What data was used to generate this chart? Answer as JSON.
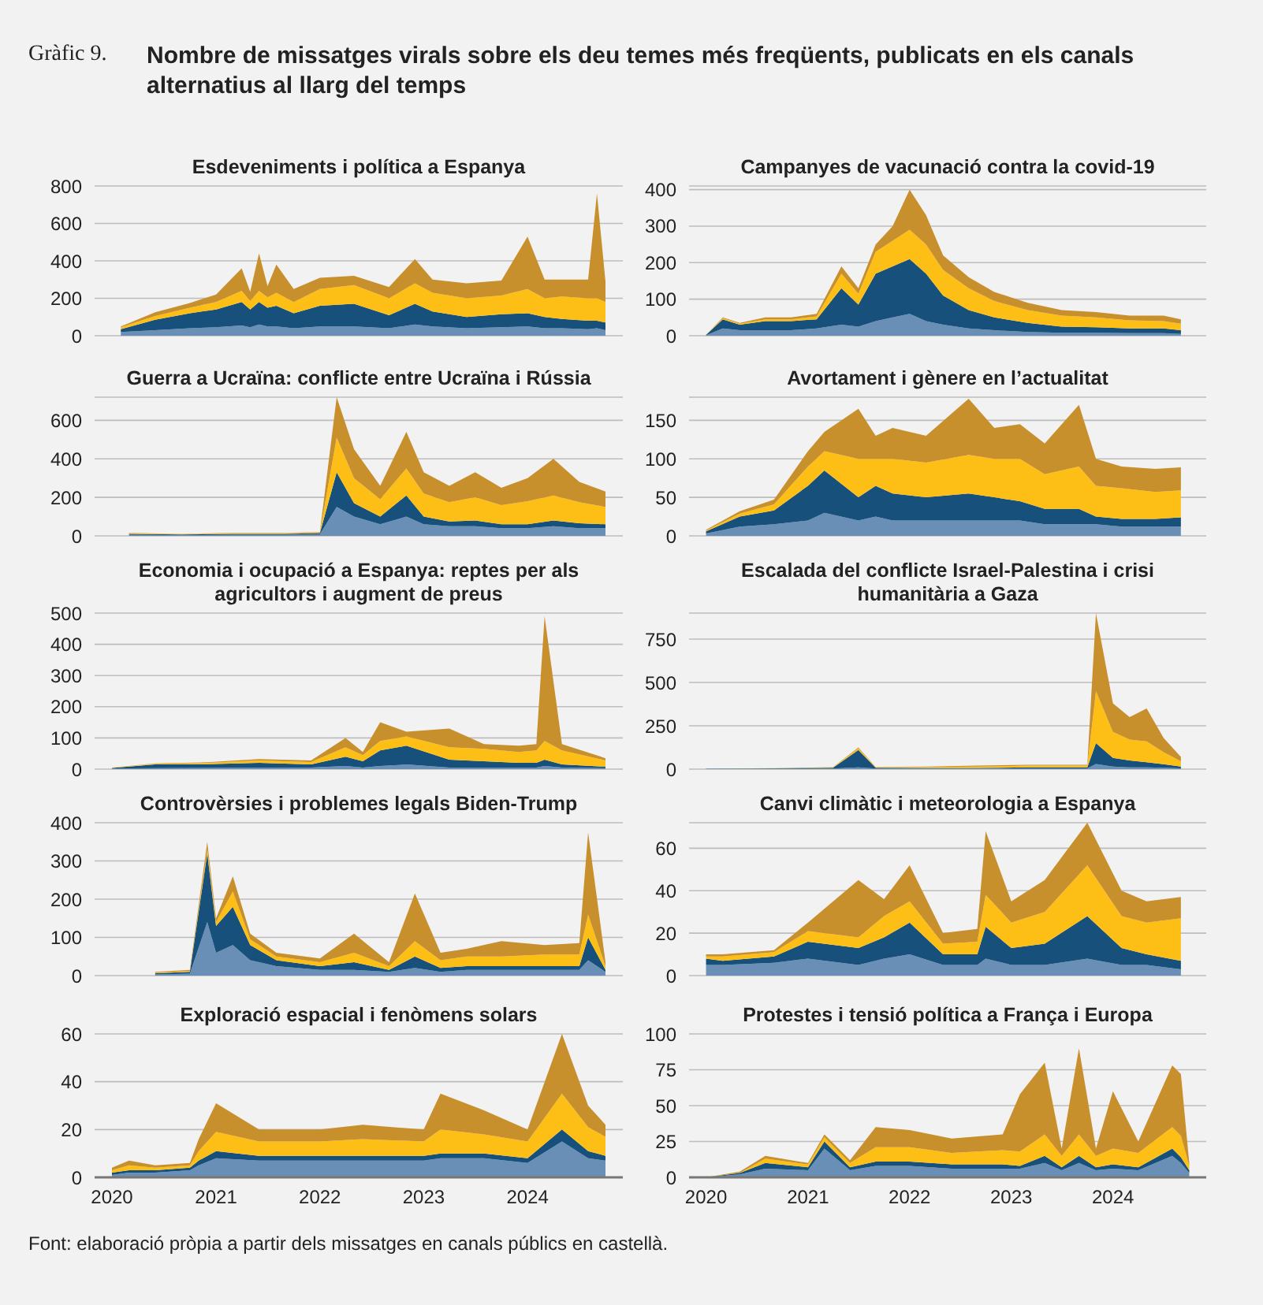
{
  "chart_data": [
    {
      "type": "other",
      "title": "Nombre de missatges virals sobre els deu temes més freqüents, publicats en els canals alternatius al llarg del temps",
      "annotations": [
        "Gràfic 9.",
        "Font: elaboració pròpia a partir dels missatges en canals públics en castellà."
      ]
    },
    {
      "type": "area",
      "stacked": true,
      "title": "Esdeveniments i política a Espanya",
      "grid": "y",
      "tick_labels": "y",
      "xlim": [
        "2019-11",
        "2024-12"
      ],
      "ylim": [
        0,
        800
      ],
      "yticks": [
        0,
        200,
        400,
        600,
        800
      ],
      "x": [
        "2020-02",
        "2020-06",
        "2020-10",
        "2021-01",
        "2021-04",
        "2021-05",
        "2021-06",
        "2021-07",
        "2021-08",
        "2021-10",
        "2022-01",
        "2022-05",
        "2022-09",
        "2022-12",
        "2023-02",
        "2023-06",
        "2023-10",
        "2024-01",
        "2024-03",
        "2024-05",
        "2024-08",
        "2024-09",
        "2024-10"
      ],
      "series": [
        {
          "color": "#6a8fb6",
          "values": [
            20,
            30,
            40,
            45,
            55,
            45,
            60,
            50,
            50,
            40,
            50,
            50,
            40,
            60,
            50,
            40,
            45,
            50,
            40,
            40,
            35,
            40,
            30
          ]
        },
        {
          "color": "#17507a",
          "values": [
            15,
            55,
            80,
            95,
            125,
            95,
            120,
            100,
            110,
            80,
            110,
            120,
            70,
            110,
            80,
            60,
            70,
            70,
            60,
            50,
            45,
            40,
            40
          ]
        },
        {
          "color": "#fdbf16",
          "values": [
            10,
            20,
            30,
            40,
            60,
            45,
            60,
            55,
            70,
            60,
            90,
            100,
            90,
            110,
            100,
            100,
            100,
            130,
            100,
            120,
            120,
            120,
            110
          ]
        },
        {
          "color": "#c88f2d",
          "values": [
            5,
            20,
            25,
            40,
            120,
            50,
            200,
            60,
            150,
            70,
            60,
            50,
            60,
            130,
            70,
            80,
            80,
            280,
            100,
            90,
            100,
            560,
            110
          ]
        }
      ]
    },
    {
      "type": "area",
      "stacked": true,
      "title": "Campanyes de vacunació contra la covid-19",
      "grid": "y",
      "tick_labels": "y",
      "xlim": [
        "2019-11",
        "2024-12"
      ],
      "ylim": [
        0,
        410
      ],
      "yticks": [
        0,
        100,
        200,
        300,
        400
      ],
      "x": [
        "2020-01",
        "2020-03",
        "2020-05",
        "2020-08",
        "2020-11",
        "2021-02",
        "2021-05",
        "2021-07",
        "2021-09",
        "2021-11",
        "2022-01",
        "2022-03",
        "2022-05",
        "2022-08",
        "2022-11",
        "2023-03",
        "2023-07",
        "2023-11",
        "2024-03",
        "2024-07",
        "2024-09"
      ],
      "series": [
        {
          "color": "#6a8fb6",
          "values": [
            1,
            20,
            15,
            15,
            15,
            20,
            30,
            25,
            40,
            50,
            60,
            40,
            30,
            20,
            15,
            10,
            8,
            8,
            7,
            7,
            5
          ]
        },
        {
          "color": "#17507a",
          "values": [
            1,
            25,
            15,
            25,
            25,
            25,
            100,
            60,
            130,
            140,
            150,
            130,
            80,
            50,
            35,
            25,
            17,
            15,
            13,
            13,
            10
          ]
        },
        {
          "color": "#fdbf16",
          "values": [
            0,
            3,
            3,
            5,
            5,
            8,
            40,
            30,
            60,
            70,
            80,
            80,
            70,
            60,
            45,
            35,
            30,
            27,
            22,
            20,
            18
          ]
        },
        {
          "color": "#c88f2d",
          "values": [
            0,
            2,
            2,
            5,
            5,
            7,
            20,
            15,
            20,
            40,
            110,
            80,
            40,
            30,
            25,
            20,
            15,
            15,
            13,
            15,
            12
          ]
        }
      ]
    },
    {
      "type": "area",
      "stacked": true,
      "title": "Guerra a Ucraïna: conflicte entre Ucraïna i Rússia",
      "grid": "y",
      "tick_labels": "y",
      "xlim": [
        "2019-11",
        "2024-12"
      ],
      "ylim": [
        0,
        720
      ],
      "yticks": [
        0,
        200,
        400,
        600
      ],
      "x": [
        "2020-03",
        "2020-09",
        "2021-03",
        "2021-09",
        "2022-01",
        "2022-03",
        "2022-05",
        "2022-08",
        "2022-11",
        "2023-01",
        "2023-04",
        "2023-07",
        "2023-10",
        "2024-01",
        "2024-04",
        "2024-07",
        "2024-10"
      ],
      "series": [
        {
          "color": "#6a8fb6",
          "values": [
            5,
            4,
            5,
            5,
            8,
            150,
            100,
            60,
            100,
            60,
            50,
            50,
            40,
            40,
            50,
            40,
            40
          ]
        },
        {
          "color": "#17507a",
          "values": [
            5,
            3,
            5,
            5,
            6,
            180,
            70,
            40,
            110,
            40,
            25,
            30,
            20,
            20,
            30,
            25,
            20
          ]
        },
        {
          "color": "#fdbf16",
          "values": [
            3,
            2,
            3,
            3,
            4,
            180,
            130,
            90,
            140,
            120,
            100,
            120,
            100,
            120,
            130,
            110,
            90
          ]
        },
        {
          "color": "#c88f2d",
          "values": [
            2,
            1,
            2,
            2,
            2,
            210,
            150,
            70,
            190,
            110,
            85,
            130,
            90,
            120,
            190,
            105,
            80
          ]
        }
      ]
    },
    {
      "type": "area",
      "stacked": true,
      "title": "Avortament i gènere en l’actualitat",
      "grid": "y",
      "tick_labels": "y",
      "xlim": [
        "2019-11",
        "2024-12"
      ],
      "ylim": [
        0,
        180
      ],
      "yticks": [
        0,
        50,
        100,
        150
      ],
      "x": [
        "2020-01",
        "2020-05",
        "2020-09",
        "2021-01",
        "2021-03",
        "2021-07",
        "2021-09",
        "2021-11",
        "2022-03",
        "2022-08",
        "2022-11",
        "2023-02",
        "2023-05",
        "2023-09",
        "2023-11",
        "2024-02",
        "2024-06",
        "2024-09"
      ],
      "series": [
        {
          "color": "#6a8fb6",
          "values": [
            3,
            12,
            15,
            20,
            30,
            20,
            25,
            20,
            20,
            20,
            20,
            20,
            15,
            15,
            15,
            12,
            12,
            12
          ]
        },
        {
          "color": "#17507a",
          "values": [
            3,
            13,
            18,
            45,
            55,
            30,
            40,
            35,
            30,
            35,
            30,
            25,
            20,
            20,
            10,
            10,
            10,
            12
          ]
        },
        {
          "color": "#fdbf16",
          "values": [
            1,
            4,
            8,
            25,
            25,
            50,
            35,
            45,
            45,
            50,
            50,
            55,
            45,
            55,
            40,
            40,
            35,
            35
          ]
        },
        {
          "color": "#c88f2d",
          "values": [
            1,
            3,
            6,
            20,
            25,
            65,
            30,
            40,
            35,
            73,
            40,
            45,
            40,
            80,
            35,
            28,
            30,
            30
          ]
        }
      ]
    },
    {
      "type": "area",
      "stacked": true,
      "title": "Economia i ocupació a Espanya: reptes per als agricultors i augment de preus",
      "grid": "y",
      "tick_labels": "y",
      "xlim": [
        "2019-11",
        "2024-12"
      ],
      "ylim": [
        0,
        500
      ],
      "yticks": [
        0,
        100,
        200,
        300,
        400,
        500
      ],
      "x": [
        "2020-01",
        "2020-06",
        "2020-12",
        "2021-06",
        "2021-12",
        "2022-04",
        "2022-06",
        "2022-08",
        "2022-11",
        "2023-04",
        "2023-08",
        "2023-12",
        "2024-02",
        "2024-03",
        "2024-05",
        "2024-10"
      ],
      "series": [
        {
          "color": "#6a8fb6",
          "values": [
            2,
            3,
            4,
            5,
            5,
            10,
            5,
            10,
            15,
            5,
            5,
            5,
            5,
            10,
            5,
            3
          ]
        },
        {
          "color": "#17507a",
          "values": [
            2,
            12,
            12,
            15,
            10,
            30,
            20,
            50,
            60,
            25,
            20,
            15,
            15,
            20,
            10,
            5
          ]
        },
        {
          "color": "#fdbf16",
          "values": [
            1,
            2,
            4,
            8,
            8,
            30,
            20,
            30,
            30,
            40,
            40,
            35,
            40,
            60,
            45,
            20
          ]
        },
        {
          "color": "#c88f2d",
          "values": [
            0,
            1,
            2,
            4,
            5,
            30,
            10,
            60,
            15,
            60,
            15,
            20,
            20,
            400,
            20,
            7
          ]
        }
      ]
    },
    {
      "type": "area",
      "stacked": true,
      "title": "Escalada del conflicte Israel-Palestina i crisi humanitària a Gaza",
      "grid": "y",
      "tick_labels": "y",
      "xlim": [
        "2019-11",
        "2024-12"
      ],
      "ylim": [
        0,
        900
      ],
      "yticks": [
        0,
        250,
        500,
        750
      ],
      "x": [
        "2020-01",
        "2020-09",
        "2021-04",
        "2021-07",
        "2021-09",
        "2022-03",
        "2022-09",
        "2023-03",
        "2023-10",
        "2023-11",
        "2024-01",
        "2024-03",
        "2024-05",
        "2024-07",
        "2024-09"
      ],
      "series": [
        {
          "color": "#6a8fb6",
          "values": [
            1,
            2,
            3,
            10,
            3,
            3,
            3,
            5,
            5,
            30,
            15,
            10,
            10,
            8,
            5
          ]
        },
        {
          "color": "#17507a",
          "values": [
            1,
            3,
            5,
            100,
            5,
            4,
            4,
            5,
            5,
            120,
            50,
            40,
            30,
            20,
            10
          ]
        },
        {
          "color": "#fdbf16",
          "values": [
            0,
            1,
            2,
            10,
            3,
            5,
            8,
            10,
            10,
            300,
            150,
            120,
            120,
            70,
            30
          ]
        },
        {
          "color": "#c88f2d",
          "values": [
            0,
            0,
            1,
            5,
            2,
            3,
            5,
            5,
            5,
            450,
            165,
            130,
            190,
            82,
            25
          ]
        }
      ]
    },
    {
      "type": "area",
      "stacked": true,
      "title": "Controvèrsies i problemes legals Biden-Trump",
      "grid": "y",
      "tick_labels": "y",
      "xlim": [
        "2019-11",
        "2024-12"
      ],
      "ylim": [
        0,
        400
      ],
      "yticks": [
        0,
        100,
        200,
        300,
        400
      ],
      "x": [
        "2020-06",
        "2020-10",
        "2020-12",
        "2021-01",
        "2021-03",
        "2021-05",
        "2021-08",
        "2022-01",
        "2022-05",
        "2022-09",
        "2022-12",
        "2023-03",
        "2023-06",
        "2023-10",
        "2024-03",
        "2024-07",
        "2024-08",
        "2024-10"
      ],
      "series": [
        {
          "color": "#6a8fb6",
          "values": [
            3,
            5,
            140,
            60,
            80,
            40,
            25,
            15,
            15,
            10,
            20,
            10,
            15,
            15,
            15,
            15,
            40,
            10
          ]
        },
        {
          "color": "#17507a",
          "values": [
            3,
            5,
            180,
            70,
            100,
            40,
            15,
            10,
            20,
            5,
            30,
            10,
            10,
            10,
            10,
            10,
            60,
            5
          ]
        },
        {
          "color": "#fdbf16",
          "values": [
            2,
            2,
            10,
            10,
            40,
            15,
            10,
            10,
            25,
            10,
            40,
            20,
            25,
            25,
            30,
            30,
            60,
            10
          ]
        },
        {
          "color": "#c88f2d",
          "values": [
            2,
            3,
            20,
            10,
            40,
            15,
            10,
            10,
            50,
            10,
            125,
            20,
            20,
            40,
            25,
            30,
            215,
            10
          ]
        }
      ]
    },
    {
      "type": "area",
      "stacked": true,
      "title": "Canvi climàtic i meteorologia a Espanya",
      "grid": "y",
      "tick_labels": "y",
      "xlim": [
        "2019-11",
        "2024-12"
      ],
      "ylim": [
        0,
        72
      ],
      "yticks": [
        0,
        20,
        40,
        60
      ],
      "x": [
        "2020-01",
        "2020-03",
        "2020-09",
        "2021-01",
        "2021-07",
        "2021-10",
        "2022-01",
        "2022-05",
        "2022-09",
        "2022-10",
        "2023-01",
        "2023-05",
        "2023-10",
        "2024-02",
        "2024-05",
        "2024-09"
      ],
      "series": [
        {
          "color": "#6a8fb6",
          "values": [
            5,
            5,
            6,
            8,
            5,
            8,
            10,
            5,
            5,
            8,
            5,
            5,
            8,
            5,
            5,
            3
          ]
        },
        {
          "color": "#17507a",
          "values": [
            3,
            2,
            3,
            8,
            8,
            10,
            15,
            5,
            5,
            15,
            8,
            10,
            20,
            8,
            5,
            4
          ]
        },
        {
          "color": "#fdbf16",
          "values": [
            1,
            2,
            2,
            5,
            5,
            10,
            10,
            5,
            6,
            15,
            12,
            15,
            24,
            15,
            15,
            20
          ]
        },
        {
          "color": "#c88f2d",
          "values": [
            1,
            1,
            1,
            4,
            27,
            8,
            17,
            5,
            6,
            30,
            10,
            15,
            20,
            12,
            10,
            10
          ]
        }
      ]
    },
    {
      "type": "area",
      "stacked": true,
      "title": "Exploració espacial i fenòmens solars",
      "grid": "y",
      "xlim": [
        "2019-11",
        "2024-12"
      ],
      "xticks": [
        {
          "value": "2020",
          "label": "2020"
        },
        {
          "value": "2021",
          "label": "2021"
        },
        {
          "value": "2022",
          "label": "2022"
        },
        {
          "value": "2023",
          "label": "2023"
        },
        {
          "value": "2024",
          "label": "2024"
        }
      ],
      "ylim": [
        0,
        60
      ],
      "yticks": [
        0,
        20,
        40,
        60
      ],
      "x": [
        "2020-01",
        "2020-03",
        "2020-06",
        "2020-10",
        "2020-11",
        "2021-01",
        "2021-06",
        "2022-01",
        "2022-06",
        "2023-01",
        "2023-03",
        "2023-08",
        "2024-01",
        "2024-05",
        "2024-08",
        "2024-10"
      ],
      "series": [
        {
          "color": "#6a8fb6",
          "values": [
            1,
            2,
            2,
            3,
            5,
            8,
            7,
            7,
            7,
            7,
            8,
            8,
            6,
            15,
            8,
            7
          ]
        },
        {
          "color": "#17507a",
          "values": [
            1,
            1,
            1,
            1,
            2,
            3,
            2,
            2,
            2,
            2,
            2,
            2,
            2,
            5,
            3,
            2
          ]
        },
        {
          "color": "#fdbf16",
          "values": [
            1,
            2,
            1,
            1,
            4,
            8,
            6,
            6,
            7,
            6,
            10,
            8,
            7,
            15,
            10,
            8
          ]
        },
        {
          "color": "#c88f2d",
          "values": [
            1,
            2,
            1,
            1,
            5,
            12,
            5,
            5,
            6,
            5,
            15,
            10,
            5,
            25,
            9,
            5
          ]
        }
      ]
    },
    {
      "type": "area",
      "stacked": true,
      "title": "Protestes i tensió política a França i Europa",
      "grid": "y",
      "xlim": [
        "2019-11",
        "2024-12"
      ],
      "xticks": [
        {
          "value": "2020",
          "label": "2020"
        },
        {
          "value": "2021",
          "label": "2021"
        },
        {
          "value": "2022",
          "label": "2022"
        },
        {
          "value": "2023",
          "label": "2023"
        },
        {
          "value": "2024",
          "label": "2024"
        }
      ],
      "ylim": [
        0,
        100
      ],
      "yticks": [
        0,
        25,
        50,
        75,
        100
      ],
      "x": [
        "2020-01",
        "2020-05",
        "2020-08",
        "2021-01",
        "2021-03",
        "2021-06",
        "2021-09",
        "2022-01",
        "2022-06",
        "2022-12",
        "2023-02",
        "2023-05",
        "2023-07",
        "2023-09",
        "2023-11",
        "2024-01",
        "2024-04",
        "2024-08",
        "2024-09",
        "2024-10"
      ],
      "series": [
        {
          "color": "#6a8fb6",
          "values": [
            0,
            2,
            6,
            5,
            20,
            5,
            8,
            8,
            6,
            6,
            6,
            10,
            5,
            10,
            5,
            6,
            5,
            15,
            10,
            3
          ]
        },
        {
          "color": "#17507a",
          "values": [
            0,
            1,
            4,
            2,
            5,
            2,
            3,
            3,
            3,
            3,
            2,
            5,
            2,
            5,
            2,
            3,
            2,
            5,
            4,
            2
          ]
        },
        {
          "color": "#fdbf16",
          "values": [
            0,
            0,
            3,
            2,
            3,
            3,
            10,
            10,
            8,
            10,
            10,
            15,
            8,
            15,
            8,
            11,
            10,
            15,
            15,
            3
          ]
        },
        {
          "color": "#c88f2d",
          "values": [
            0,
            1,
            2,
            1,
            2,
            2,
            14,
            12,
            10,
            11,
            40,
            50,
            5,
            60,
            5,
            40,
            8,
            43,
            43,
            2
          ]
        }
      ]
    }
  ]
}
